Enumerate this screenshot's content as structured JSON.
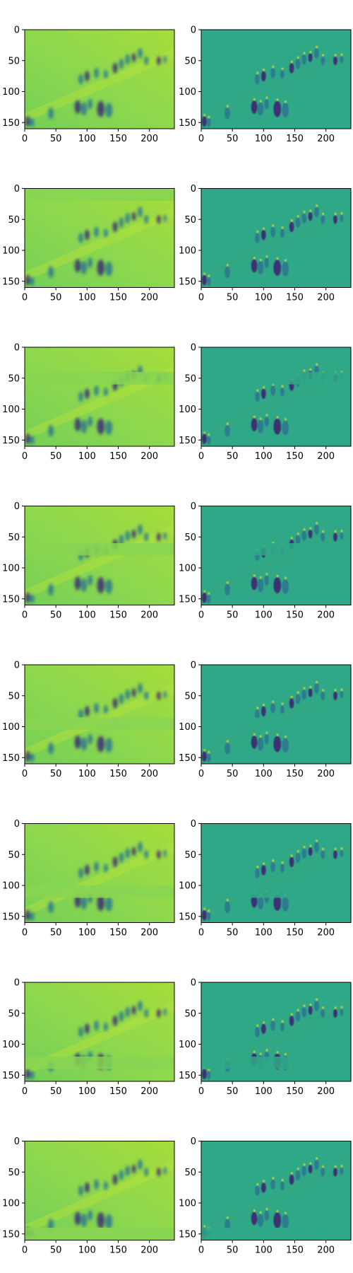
{
  "figure": {
    "rows": 8,
    "cols": 2,
    "colormap": "viridis",
    "panel_descriptions": [
      "blurred reconstruction (green/yellow)",
      "high-frequency residual (teal)"
    ]
  },
  "chart_data": {
    "type": "heatmap",
    "grid": "8x2",
    "xlim": [
      0,
      240
    ],
    "ylim": [
      160,
      0
    ],
    "x_ticks": [
      "0",
      "50",
      "100",
      "150",
      "200"
    ],
    "y_ticks": [
      "0",
      "50",
      "100",
      "150"
    ],
    "colors": {
      "left_background": "#7ed15a",
      "right_background": "#2fa887",
      "dark": "#3b2a73",
      "mid": "#2a788e",
      "bright": "#c9e02c"
    },
    "masked_band_y": [
      null,
      [
        0,
        20
      ],
      [
        40,
        60
      ],
      [
        60,
        80
      ],
      [
        85,
        105
      ],
      [
        100,
        120
      ],
      [
        120,
        140
      ],
      [
        140,
        160
      ]
    ],
    "people_blobs": [
      {
        "x": 5,
        "y": 148,
        "r": 7
      },
      {
        "x": 12,
        "y": 150,
        "r": 6
      },
      {
        "x": 42,
        "y": 135,
        "r": 8
      },
      {
        "x": 85,
        "y": 125,
        "r": 9
      },
      {
        "x": 95,
        "y": 128,
        "r": 9
      },
      {
        "x": 105,
        "y": 120,
        "r": 7
      },
      {
        "x": 122,
        "y": 128,
        "r": 11
      },
      {
        "x": 135,
        "y": 130,
        "r": 10
      },
      {
        "x": 90,
        "y": 80,
        "r": 7
      },
      {
        "x": 100,
        "y": 75,
        "r": 7
      },
      {
        "x": 115,
        "y": 70,
        "r": 7
      },
      {
        "x": 130,
        "y": 72,
        "r": 6
      },
      {
        "x": 145,
        "y": 62,
        "r": 7
      },
      {
        "x": 155,
        "y": 55,
        "r": 7
      },
      {
        "x": 165,
        "y": 48,
        "r": 7
      },
      {
        "x": 175,
        "y": 45,
        "r": 6
      },
      {
        "x": 185,
        "y": 38,
        "r": 7
      },
      {
        "x": 195,
        "y": 50,
        "r": 6
      },
      {
        "x": 215,
        "y": 50,
        "r": 6
      },
      {
        "x": 225,
        "y": 48,
        "r": 5
      }
    ]
  }
}
